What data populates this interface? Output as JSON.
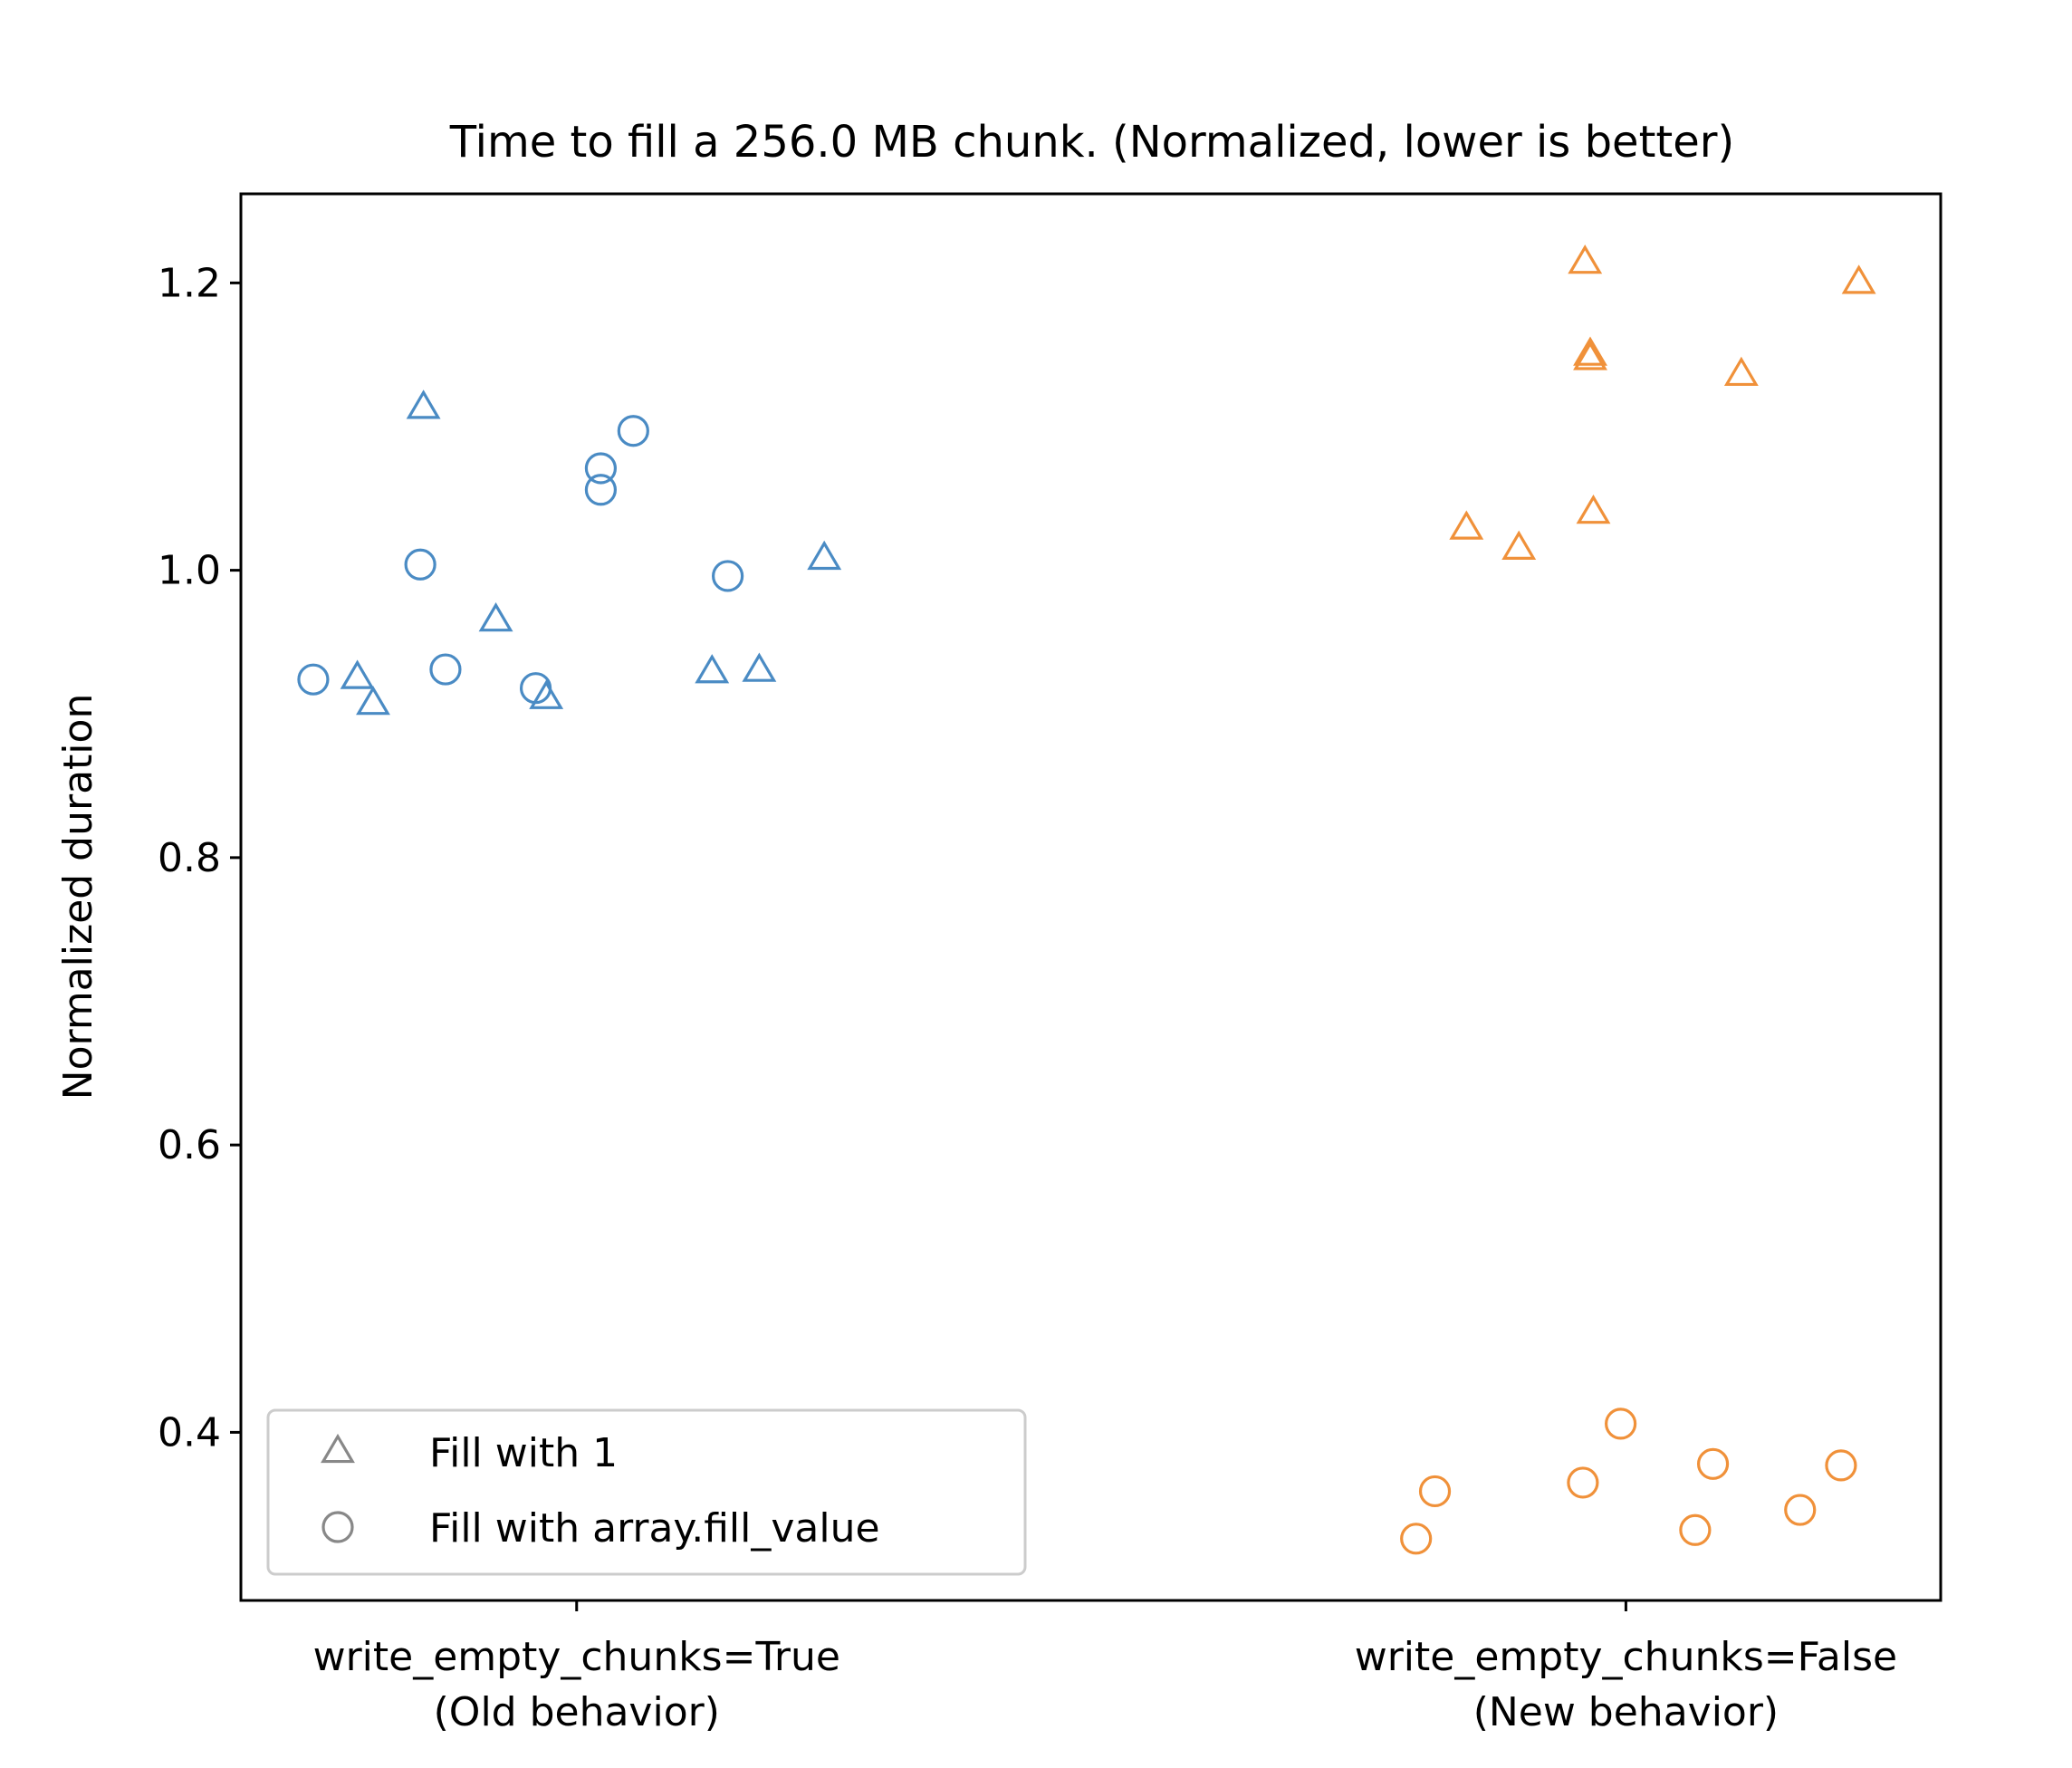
{
  "chart_data": {
    "type": "scatter",
    "title": "Time to fill a 256.0 MB chunk. (Normalized, lower is better)",
    "ylabel": "Normalized duration",
    "xlabel": "",
    "categories": [
      [
        "write_empty_chunks=True",
        "(Old behavior)"
      ],
      [
        "write_empty_chunks=False",
        "(New behavior)"
      ]
    ],
    "ylim": [
      0.283,
      1.262
    ],
    "xlim": [
      -0.32,
      1.3
    ],
    "yticks": [
      0.4,
      0.6,
      0.8,
      1.0,
      1.2
    ],
    "ytick_labels": [
      "0.4",
      "0.6",
      "0.8",
      "1.0",
      "1.2"
    ],
    "grid": false,
    "legend": {
      "position": "lower-left",
      "entries": [
        {
          "label": "Fill with 1",
          "marker": "triangle",
          "color": "#888888"
        },
        {
          "label": "Fill with array.fill_value",
          "marker": "circle",
          "color": "#888888"
        }
      ]
    },
    "colors": {
      "old": "#4a8bc4",
      "new": "#f0913a"
    },
    "series": [
      {
        "group": "write_empty_chunks=True",
        "marker": "triangle",
        "color": "#4a8bc4",
        "points": [
          {
            "x": -0.209,
            "y": 0.925
          },
          {
            "x": -0.194,
            "y": 0.907
          },
          {
            "x": -0.146,
            "y": 1.113
          },
          {
            "x": -0.077,
            "y": 0.965
          },
          {
            "x": -0.029,
            "y": 0.911
          },
          {
            "x": 0.129,
            "y": 0.929
          },
          {
            "x": 0.174,
            "y": 0.93
          },
          {
            "x": 0.236,
            "y": 1.008
          }
        ]
      },
      {
        "group": "write_empty_chunks=True",
        "marker": "circle",
        "color": "#4a8bc4",
        "points": [
          {
            "x": -0.251,
            "y": 0.924
          },
          {
            "x": -0.149,
            "y": 1.004
          },
          {
            "x": -0.125,
            "y": 0.931
          },
          {
            "x": -0.039,
            "y": 0.918
          },
          {
            "x": 0.023,
            "y": 1.071
          },
          {
            "x": 0.023,
            "y": 1.056
          },
          {
            "x": 0.054,
            "y": 1.097
          },
          {
            "x": 0.144,
            "y": 0.996
          }
        ]
      },
      {
        "group": "write_empty_chunks=False",
        "marker": "triangle",
        "color": "#f0913a",
        "points": [
          {
            "x": 0.848,
            "y": 1.029
          },
          {
            "x": 0.898,
            "y": 1.015
          },
          {
            "x": 0.961,
            "y": 1.214
          },
          {
            "x": 0.966,
            "y": 1.15
          },
          {
            "x": 0.966,
            "y": 1.147
          },
          {
            "x": 0.969,
            "y": 1.04
          },
          {
            "x": 1.11,
            "y": 1.136
          },
          {
            "x": 1.222,
            "y": 1.2
          }
        ]
      },
      {
        "group": "write_empty_chunks=False",
        "marker": "circle",
        "color": "#f0913a",
        "points": [
          {
            "x": 0.8,
            "y": 0.326
          },
          {
            "x": 0.818,
            "y": 0.359
          },
          {
            "x": 0.959,
            "y": 0.365
          },
          {
            "x": 0.995,
            "y": 0.406
          },
          {
            "x": 1.066,
            "y": 0.332
          },
          {
            "x": 1.083,
            "y": 0.378
          },
          {
            "x": 1.166,
            "y": 0.346
          },
          {
            "x": 1.205,
            "y": 0.377
          }
        ]
      }
    ]
  }
}
